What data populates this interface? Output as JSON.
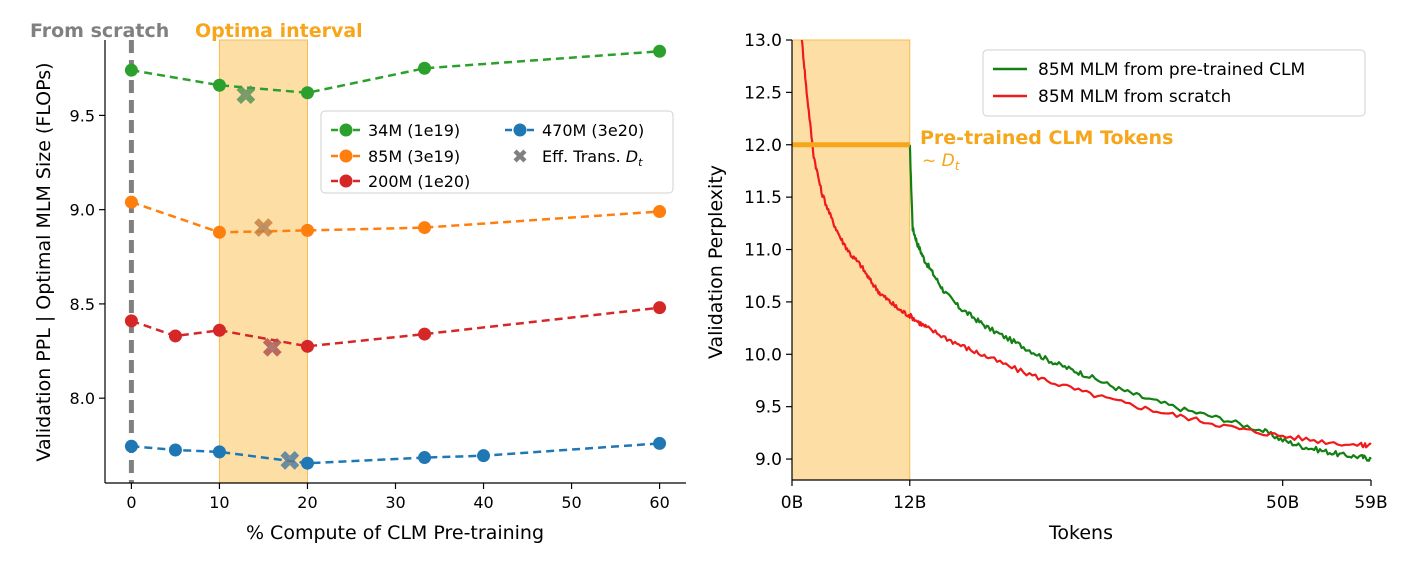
{
  "colors": {
    "green": "#2ca02c",
    "orange": "#ff7f0e",
    "red": "#d62728",
    "blue": "#1f77b4",
    "gray": "#808080",
    "band": "#fddfa6",
    "band_edge": "#f6bb54",
    "highlight": "#f7a51a",
    "clm_green": "#128012",
    "scratch_red": "#f01a1a"
  },
  "chart_data": [
    {
      "type": "line",
      "xlabel": "% Compute of CLM Pre-training",
      "ylabel": "Validation PPL | Optimal MLM Size (FLOPs)",
      "xlim": [
        -3,
        63
      ],
      "ylim": [
        7.55,
        9.9
      ],
      "xticks": [
        0,
        10,
        20,
        30,
        40,
        50,
        60
      ],
      "yticks": [
        8.0,
        8.5,
        9.0,
        9.5
      ],
      "ytick_labels": [
        "8.0",
        "8.5",
        "9.0",
        "9.5"
      ],
      "legend_position": "upper-right",
      "grid": false,
      "annotations": {
        "from_scratch": "From scratch",
        "optima_interval": "Optima interval",
        "optima_range": [
          10,
          20
        ]
      },
      "series": [
        {
          "name": "34M (1e19)",
          "color_key": "green",
          "x": [
            0,
            10,
            20,
            33.3,
            60
          ],
          "y": [
            9.74,
            9.66,
            9.62,
            9.75,
            9.84
          ],
          "eff_trans": [
            13,
            9.61
          ]
        },
        {
          "name": "85M (3e19)",
          "color_key": "orange",
          "x": [
            0,
            10,
            20,
            33.3,
            60
          ],
          "y": [
            9.04,
            8.88,
            8.89,
            8.905,
            8.99
          ],
          "eff_trans": [
            15,
            8.905
          ]
        },
        {
          "name": "200M (1e20)",
          "color_key": "red",
          "x": [
            0,
            5,
            10,
            20,
            33.3,
            60
          ],
          "y": [
            8.41,
            8.33,
            8.36,
            8.275,
            8.34,
            8.48
          ],
          "eff_trans": [
            16,
            8.27
          ]
        },
        {
          "name": "470M (3e20)",
          "color_key": "blue",
          "x": [
            0,
            5,
            10,
            20,
            33.3,
            40,
            60
          ],
          "y": [
            7.745,
            7.725,
            7.715,
            7.655,
            7.685,
            7.695,
            7.76
          ],
          "eff_trans": [
            18,
            7.67
          ]
        }
      ],
      "eff_trans_label": "Eff. Trans.",
      "eff_trans_symbol": "D",
      "eff_trans_subscript": "t"
    },
    {
      "type": "line",
      "xlabel": "Tokens",
      "ylabel": "Validation Perplexity",
      "xlim": [
        0,
        59
      ],
      "ylim": [
        8.8,
        13.0
      ],
      "xticks": [
        0,
        12,
        50,
        59
      ],
      "xtick_labels": [
        "0B",
        "12B",
        "50B",
        "59B"
      ],
      "yticks": [
        9.0,
        9.5,
        10.0,
        10.5,
        11.0,
        11.5,
        12.0,
        12.5,
        13.0
      ],
      "ytick_labels": [
        "9.0",
        "9.5",
        "10.0",
        "10.5",
        "11.0",
        "11.5",
        "12.0",
        "12.5",
        "13.0"
      ],
      "legend_position": "upper-right",
      "grid": false,
      "annotations": {
        "pretrained_label": "Pre-trained CLM Tokens",
        "approx_symbol": "~ D",
        "approx_subscript": "t",
        "pretrained_range": [
          0,
          12
        ],
        "pretrained_level": 12.0
      },
      "series": [
        {
          "name": "85M MLM from pre-trained CLM",
          "color_key": "clm_green",
          "x": [
            12,
            12.3,
            12.8,
            13.5,
            14.5,
            15.5,
            17,
            18.5,
            20,
            22,
            24,
            26,
            28,
            30,
            33,
            36,
            40,
            44,
            48,
            50,
            52,
            54,
            56,
            58,
            59
          ],
          "y": [
            12.0,
            11.2,
            11.05,
            10.9,
            10.75,
            10.6,
            10.45,
            10.35,
            10.25,
            10.15,
            10.05,
            9.95,
            9.87,
            9.8,
            9.68,
            9.58,
            9.47,
            9.38,
            9.27,
            9.18,
            9.12,
            9.08,
            9.04,
            9.02,
            9.0
          ]
        },
        {
          "name": "85M MLM from scratch",
          "color_key": "scratch_red",
          "x": [
            1.0,
            1.5,
            2.2,
            3.0,
            4.0,
            5.0,
            6.0,
            7.0,
            8.0,
            9.0,
            10.0,
            11.0,
            12.0,
            13.0,
            14.0,
            16.0,
            18.0,
            20.0,
            23.0,
            26.0,
            30.0,
            34.0,
            38.0,
            42.0,
            46.0,
            50.0,
            54.0,
            58.0,
            59.0
          ],
          "y": [
            13.0,
            12.5,
            11.9,
            11.55,
            11.3,
            11.1,
            10.95,
            10.85,
            10.7,
            10.58,
            10.5,
            10.42,
            10.37,
            10.3,
            10.24,
            10.14,
            10.05,
            9.97,
            9.85,
            9.75,
            9.63,
            9.53,
            9.44,
            9.36,
            9.28,
            9.22,
            9.17,
            9.13,
            9.14
          ]
        }
      ]
    }
  ]
}
